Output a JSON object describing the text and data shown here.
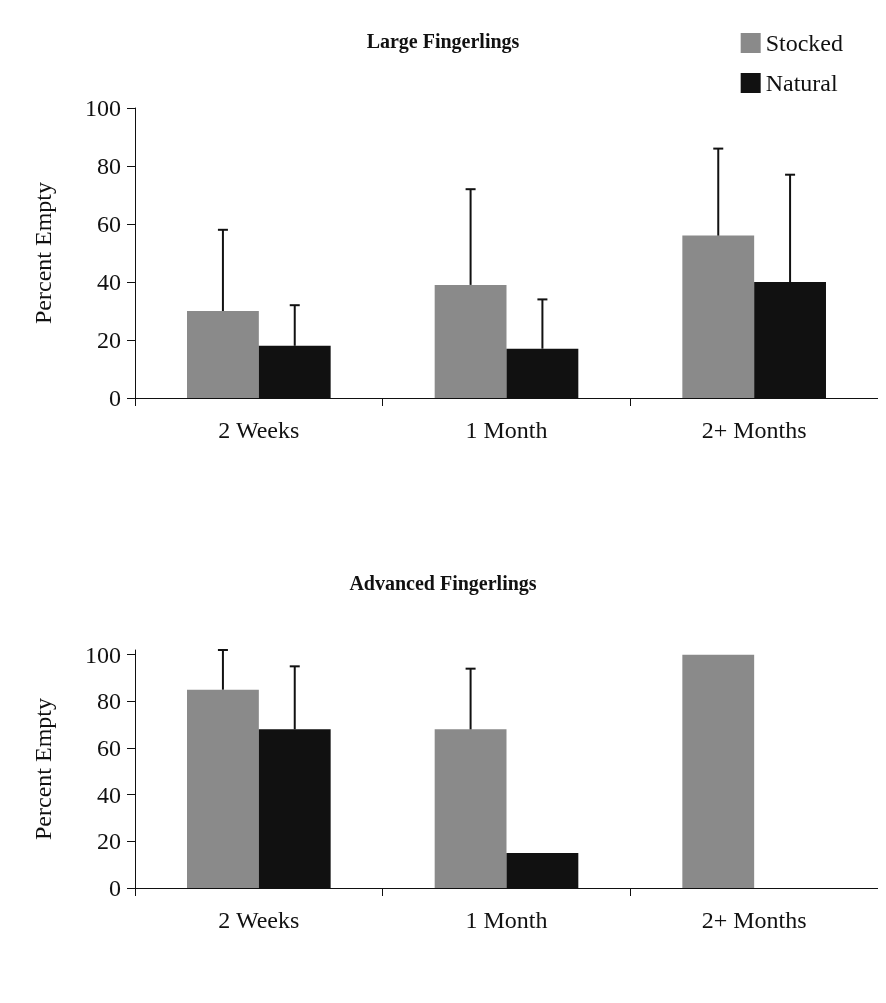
{
  "chart_data": [
    {
      "type": "bar",
      "title": "Large Fingerlings",
      "ylabel": "Percent Empty",
      "categories": [
        "2 Weeks",
        "1 Month",
        "2+ Months"
      ],
      "ylim": [
        0,
        100
      ],
      "yticks": [
        0,
        20,
        40,
        60,
        80,
        100
      ],
      "grid": false,
      "legend": "top right",
      "series": [
        {
          "name": "Stocked",
          "color": "#8a8a8a",
          "values": [
            30,
            39,
            56
          ],
          "errors": [
            [
              30,
              58
            ],
            [
              39,
              72
            ],
            [
              56,
              86
            ]
          ]
        },
        {
          "name": "Natural",
          "color": "#111111",
          "values": [
            18,
            17,
            40
          ],
          "errors": [
            [
              18,
              32
            ],
            [
              17,
              34
            ],
            [
              40,
              77
            ]
          ]
        }
      ]
    },
    {
      "type": "bar",
      "title": "Advanced Fingerlings",
      "ylabel": "Percent Empty",
      "categories": [
        "2 Weeks",
        "1 Month",
        "2+ Months"
      ],
      "ylim": [
        0,
        102
      ],
      "yticks": [
        0,
        20,
        40,
        60,
        80,
        100
      ],
      "grid": false,
      "legend": false,
      "series": [
        {
          "color": "#8a8a8a",
          "values": [
            85,
            68,
            100
          ],
          "errors": [
            [
              85,
              102
            ],
            [
              68,
              94
            ],
            null
          ]
        },
        {
          "color": "#111111",
          "values": [
            68,
            15,
            0
          ],
          "errors": [
            [
              68,
              95
            ],
            null,
            null
          ]
        }
      ]
    }
  ]
}
